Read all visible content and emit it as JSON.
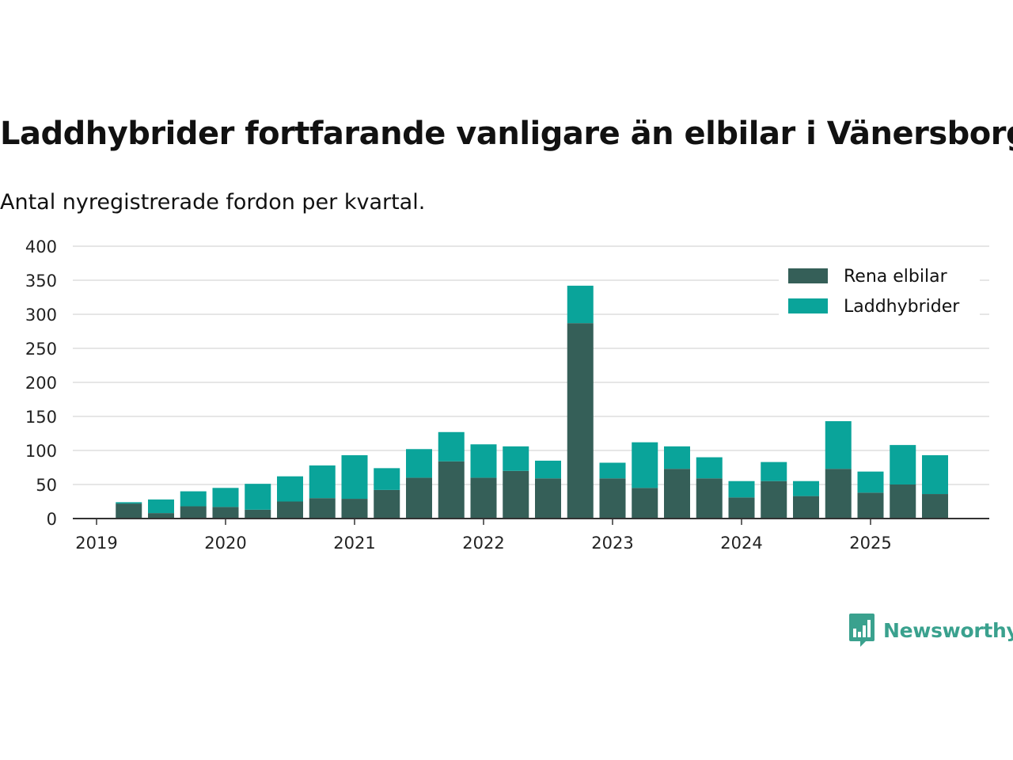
{
  "title": "Laddhybrider fortfarande vanligare än elbilar i Vänersborg",
  "subtitle": "Antal nyregistrerade fordon per kvartal.",
  "brand": {
    "name": "Newsworthy",
    "icon": "newsworthy-logo-icon"
  },
  "colors": {
    "rena_elbilar": "#355f58",
    "laddhybrider": "#0aa49a",
    "grid": "#dddddd",
    "axis": "#333333",
    "brand": "#3aa18e"
  },
  "chart_data": {
    "type": "bar",
    "stacked": true,
    "x_tick_labels": [
      "2019",
      "2020",
      "2021",
      "2022",
      "2023",
      "2024",
      "2025"
    ],
    "x_ticks": [
      "2019-Q1",
      "2020-Q1",
      "2021-Q1",
      "2022-Q1",
      "2023-Q1",
      "2024-Q1",
      "2025-Q1"
    ],
    "categories": [
      "2019-Q2",
      "2019-Q3",
      "2019-Q4",
      "2020-Q1",
      "2020-Q2",
      "2020-Q3",
      "2020-Q4",
      "2021-Q1",
      "2021-Q2",
      "2021-Q3",
      "2021-Q4",
      "2022-Q1",
      "2022-Q2",
      "2022-Q3",
      "2022-Q4",
      "2023-Q1",
      "2023-Q2",
      "2023-Q3",
      "2023-Q4",
      "2024-Q1",
      "2024-Q2",
      "2024-Q3",
      "2024-Q4",
      "2025-Q1",
      "2025-Q2",
      "2025-Q3"
    ],
    "series": [
      {
        "name": "Rena elbilar",
        "values": [
          22,
          8,
          18,
          17,
          13,
          25,
          30,
          29,
          42,
          60,
          84,
          60,
          70,
          59,
          287,
          59,
          45,
          73,
          59,
          31,
          55,
          33,
          73,
          38,
          50,
          36
        ]
      },
      {
        "name": "Laddhybrider",
        "values": [
          2,
          20,
          22,
          28,
          38,
          37,
          48,
          64,
          32,
          42,
          43,
          49,
          36,
          26,
          55,
          23,
          67,
          33,
          31,
          24,
          28,
          22,
          70,
          31,
          58,
          57
        ]
      }
    ],
    "ylim": [
      0,
      400
    ],
    "yticks": [
      0,
      50,
      100,
      150,
      200,
      250,
      300,
      350,
      400
    ],
    "xlabel": "",
    "ylabel": "",
    "grid": true,
    "legend": "top-right"
  }
}
